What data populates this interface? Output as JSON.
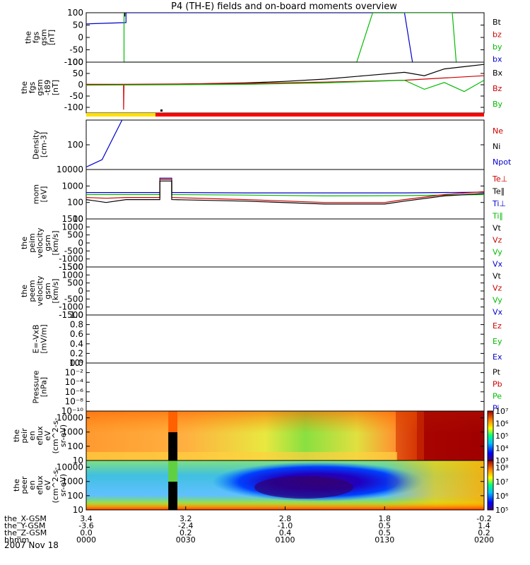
{
  "chart_data": {
    "title": "P4 (TH-E) fields and on-board moments overview",
    "date_label": "2007 Nov 18",
    "x_axis": {
      "row_labels": [
        "the_X-GSM",
        "the_Y-GSM",
        "the_Z-GSM",
        "hhmm"
      ],
      "columns": [
        [
          "3.4",
          "-3.6",
          "0.0",
          "0000"
        ],
        [
          "3.2",
          "-2.4",
          "0.2",
          "0030"
        ],
        [
          "2.8",
          "-1.0",
          "0.4",
          "0100"
        ],
        [
          "1.8",
          "0.5",
          "0.5",
          "0130"
        ],
        [
          "-0.2",
          "1.4",
          "0.2",
          "0200"
        ]
      ]
    },
    "panels": [
      {
        "id": "fgs",
        "type": "line",
        "ylabel": [
          "the",
          "fgs",
          "gsm",
          "[nT]"
        ],
        "yticks": [
          "100",
          "50",
          "0",
          "-50",
          "-100"
        ],
        "ylim": [
          -100,
          100
        ],
        "legend": [
          {
            "label": "Bt",
            "color": "#000000"
          },
          {
            "label": "bz",
            "color": "#cc0000"
          },
          {
            "label": "by",
            "color": "#00bb00"
          },
          {
            "label": "bx",
            "color": "#0000cc"
          }
        ],
        "series": [
          {
            "name": "bx",
            "color": "#0000cc",
            "x": [
              0.0,
              0.1,
              0.1,
              0.18,
              0.8,
              0.82
            ],
            "y": [
              55,
              60,
              100,
              100,
              100,
              -100
            ]
          },
          {
            "name": "by",
            "color": "#00bb00",
            "x": [
              0.095,
              0.095,
              0.68,
              0.72,
              0.92,
              0.93
            ],
            "y": [
              100,
              -100,
              -100,
              100,
              100,
              -100
            ]
          },
          {
            "name": "Bt",
            "color": "#000000",
            "x": [
              0.097,
              0.097
            ],
            "y": [
              100,
              85
            ]
          }
        ]
      },
      {
        "id": "fgs-t89",
        "type": "line",
        "ylabel": [
          "the",
          "fgs",
          "gsm",
          "-t89",
          "[nT]"
        ],
        "yticks": [
          "100",
          "50",
          "0",
          "-50",
          "-100"
        ],
        "ylim": [
          -125,
          100
        ],
        "legend": [
          {
            "label": "Bx",
            "color": "#000000"
          },
          {
            "label": "Bz",
            "color": "#cc0000"
          },
          {
            "label": "By",
            "color": "#00bb00"
          }
        ],
        "series": [
          {
            "name": "Bx",
            "color": "#000000",
            "x": [
              0.0,
              0.2,
              0.4,
              0.5,
              0.6,
              0.7,
              0.8,
              0.85,
              0.9,
              0.95,
              1.0
            ],
            "y": [
              0,
              2,
              8,
              15,
              25,
              40,
              55,
              40,
              70,
              80,
              90
            ]
          },
          {
            "name": "Bz",
            "color": "#cc0000",
            "x": [
              0.0,
              0.094,
              0.094,
              0.095,
              0.2,
              0.4,
              0.6,
              0.8,
              0.9,
              1.0
            ],
            "y": [
              2,
              2,
              -110,
              2,
              3,
              6,
              12,
              20,
              30,
              40
            ]
          },
          {
            "name": "By",
            "color": "#00bb00",
            "x": [
              0.0,
              0.2,
              0.4,
              0.6,
              0.8,
              0.85,
              0.9,
              0.95,
              1.0
            ],
            "y": [
              -2,
              0,
              2,
              8,
              20,
              -20,
              10,
              -30,
              20
            ]
          }
        ]
      },
      {
        "id": "density",
        "type": "line",
        "ylabel": [
          "Density",
          "[cm-3]"
        ],
        "yticks": [
          "100"
        ],
        "ylim": [
          0,
          200
        ],
        "legend": [
          {
            "label": "Ne",
            "color": "#cc0000"
          },
          {
            "label": "Ni",
            "color": "#000000"
          },
          {
            "label": "Npot",
            "color": "#0000cc"
          }
        ],
        "series": [
          {
            "name": "Npot",
            "color": "#0000cc",
            "x": [
              0.0,
              0.04,
              0.09
            ],
            "y": [
              10,
              40,
              200
            ]
          }
        ]
      },
      {
        "id": "temperature",
        "type": "line",
        "ylabel": [
          "mom",
          "[eV]"
        ],
        "yticks": [
          "10000",
          "1000",
          "100",
          "10"
        ],
        "ylim": [
          10,
          10000
        ],
        "legend": [
          {
            "label": "Te⊥",
            "color": "#cc0000"
          },
          {
            "label": "Te∥",
            "color": "#000000"
          },
          {
            "label": "Ti⊥",
            "color": "#0000cc"
          },
          {
            "label": "Ti∥",
            "color": "#00bb00"
          }
        ],
        "series": [
          {
            "name": "Ti⊥",
            "color": "#0000cc",
            "x": [
              0.0,
              0.1,
              0.185,
              0.185,
              0.215,
              0.215,
              0.4,
              0.6,
              0.8,
              1.0
            ],
            "y": [
              400,
              400,
              400,
              3000,
              3000,
              400,
              380,
              380,
              380,
              420
            ]
          },
          {
            "name": "Ti∥",
            "color": "#00bb00",
            "x": [
              0.0,
              0.1,
              0.185,
              0.185,
              0.215,
              0.215,
              0.4,
              0.6,
              0.8,
              1.0
            ],
            "y": [
              300,
              300,
              300,
              2500,
              2500,
              300,
              280,
              250,
              260,
              300
            ]
          },
          {
            "name": "Te⊥",
            "color": "#cc0000",
            "x": [
              0.0,
              0.05,
              0.1,
              0.185,
              0.185,
              0.215,
              0.215,
              0.4,
              0.6,
              0.75,
              0.8,
              0.9,
              1.0
            ],
            "y": [
              200,
              180,
              200,
              200,
              2500,
              2500,
              200,
              150,
              100,
              100,
              150,
              300,
              450
            ]
          },
          {
            "name": "Te∥",
            "color": "#000000",
            "x": [
              0.0,
              0.05,
              0.1,
              0.185,
              0.185,
              0.215,
              0.215,
              0.4,
              0.6,
              0.75,
              0.8,
              0.9,
              1.0
            ],
            "y": [
              150,
              100,
              150,
              150,
              2000,
              2000,
              150,
              120,
              80,
              80,
              120,
              250,
              350
            ]
          }
        ]
      },
      {
        "id": "peim-velocity",
        "type": "line",
        "ylabel": [
          "the",
          "peim",
          "velocity",
          "gsm",
          "[km/s]"
        ],
        "yticks": [
          "1500",
          "1000",
          "500",
          "0",
          "-500",
          "-1000",
          "-1500"
        ],
        "ylim": [
          -1500,
          1500
        ],
        "legend": [
          {
            "label": "Vt",
            "color": "#000000"
          },
          {
            "label": "Vz",
            "color": "#cc0000"
          },
          {
            "label": "Vy",
            "color": "#00bb00"
          },
          {
            "label": "Vx",
            "color": "#0000cc"
          }
        ],
        "series": []
      },
      {
        "id": "peem-velocity",
        "type": "line",
        "ylabel": [
          "the",
          "peem",
          "velocity",
          "gsm",
          "[km/s]"
        ],
        "yticks": [
          "1500",
          "1000",
          "500",
          "0",
          "-500",
          "-1000",
          "-1500"
        ],
        "ylim": [
          -1500,
          1500
        ],
        "legend": [
          {
            "label": "Vt",
            "color": "#000000"
          },
          {
            "label": "Vz",
            "color": "#cc0000"
          },
          {
            "label": "Vy",
            "color": "#00bb00"
          },
          {
            "label": "Vx",
            "color": "#0000cc"
          }
        ],
        "series": []
      },
      {
        "id": "e-vxb",
        "type": "line",
        "ylabel": [
          "E=-VxB",
          "[mV/m]"
        ],
        "yticks": [
          "1.0",
          "0.8",
          "0.6",
          "0.4",
          "0.2",
          "0.0"
        ],
        "ylim": [
          0,
          1
        ],
        "legend": [
          {
            "label": "Ez",
            "color": "#cc0000"
          },
          {
            "label": "Ey",
            "color": "#00bb00"
          },
          {
            "label": "Ex",
            "color": "#0000cc"
          }
        ],
        "series": []
      },
      {
        "id": "pressure",
        "type": "line",
        "ylabel": [
          "Pressure",
          "[nPa]"
        ],
        "yticks": [
          "10⁰",
          "10⁻²",
          "10⁻⁴",
          "10⁻⁶",
          "10⁻⁸",
          "10⁻¹⁰"
        ],
        "ylim": [
          1e-10,
          1
        ],
        "legend": [
          {
            "label": "Pt",
            "color": "#000000"
          },
          {
            "label": "Pb",
            "color": "#cc0000"
          },
          {
            "label": "Pe",
            "color": "#00bb00"
          },
          {
            "label": "Pi",
            "color": "#0000cc"
          }
        ],
        "series": []
      },
      {
        "id": "peir-spectrogram",
        "type": "heatmap",
        "ylabel": [
          "the",
          "peir",
          "en",
          "eflux",
          "eV",
          "(cm^2-s-",
          "sr-eV)"
        ],
        "yticks": [
          "10000",
          "1000",
          "100",
          "10"
        ],
        "ylim": [
          10,
          30000
        ],
        "colorbar_ticks": [
          "10⁷",
          "10⁶",
          "10⁵",
          "10⁴",
          "10³"
        ],
        "colorbar_range": [
          3,
          7
        ],
        "data_gap_x": [
          0.185,
          0.215
        ]
      },
      {
        "id": "peer-spectrogram",
        "type": "heatmap",
        "ylabel": [
          "the",
          "peer",
          "en",
          "eflux",
          "eV",
          "(cm^2-s-",
          "sr-eV)"
        ],
        "yticks": [
          "10000",
          "1000",
          "100",
          "10"
        ],
        "ylim": [
          10,
          30000
        ],
        "colorbar_ticks": [
          "10⁸",
          "10⁷",
          "10⁶",
          "10⁵"
        ],
        "colorbar_range": [
          5,
          8.5
        ],
        "data_gap_x": [
          0.185,
          0.215
        ]
      }
    ]
  }
}
